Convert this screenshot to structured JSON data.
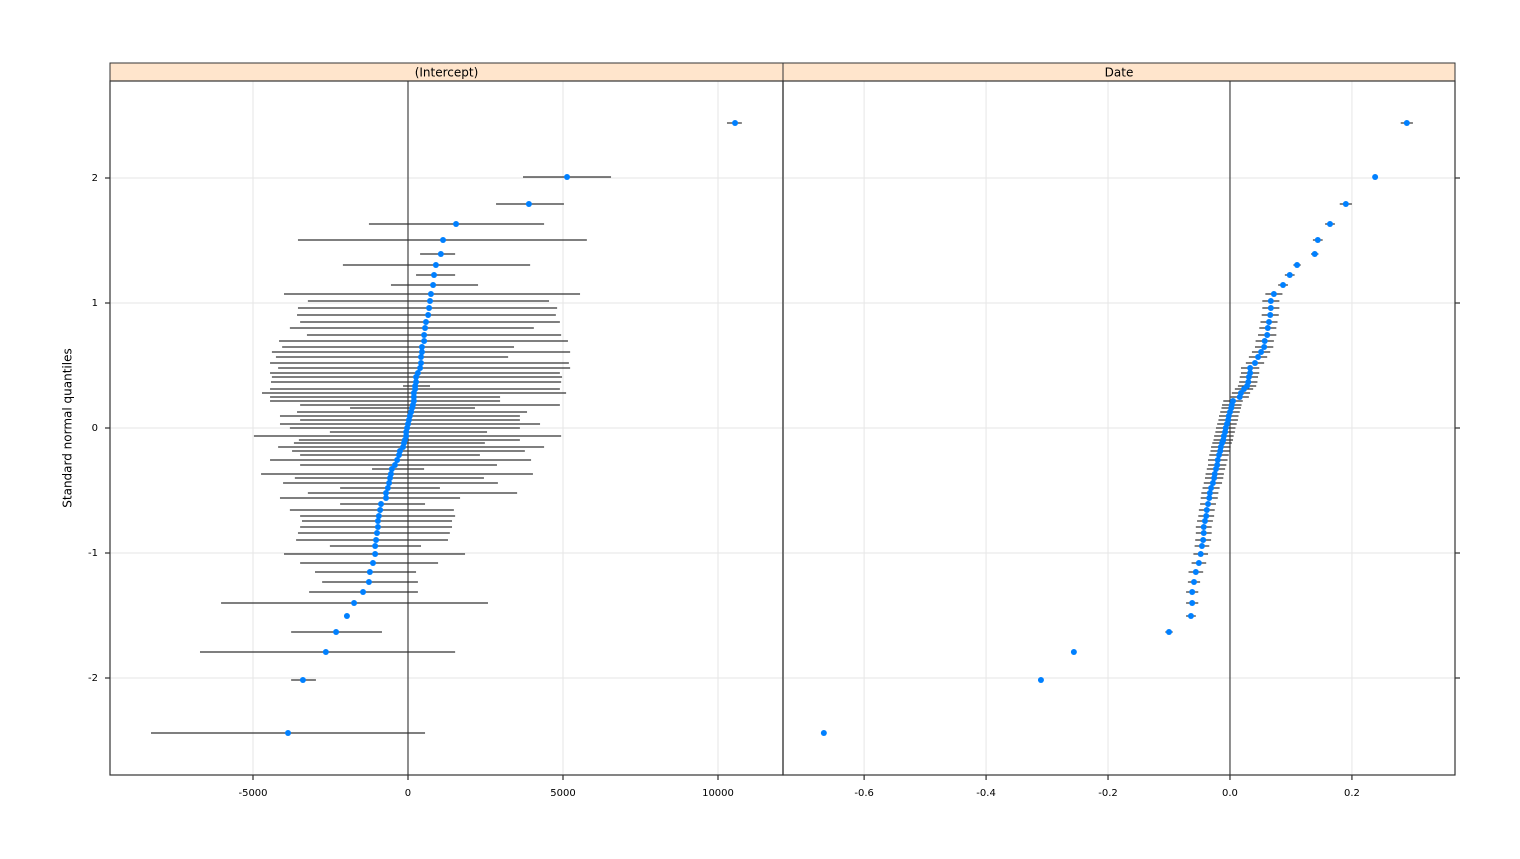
{
  "y_label": "Standard normal quantiles",
  "chart_data": [
    {
      "type": "dotplot",
      "strip": "(Intercept)",
      "color": "#0080ff",
      "grid": true,
      "xlim": [
        -9613,
        12097
      ],
      "xticks": [
        -5000,
        0,
        5000,
        10000
      ],
      "ylim": [
        -2.776,
        2.776
      ],
      "yticks": [
        -2,
        -1,
        0,
        1,
        2
      ],
      "y": [
        -2.44,
        -2.016,
        -1.792,
        -1.632,
        -1.504,
        -1.4,
        -1.312,
        -1.232,
        -1.152,
        -1.08,
        -1.008,
        -0.944,
        -0.896,
        -0.84,
        -0.792,
        -0.744,
        -0.704,
        -0.656,
        -0.608,
        -0.56,
        -0.52,
        -0.48,
        -0.44,
        -0.4,
        -0.368,
        -0.328,
        -0.296,
        -0.256,
        -0.216,
        -0.184,
        -0.152,
        -0.12,
        -0.096,
        -0.064,
        -0.032,
        0,
        0.032,
        0.064,
        0.096,
        0.128,
        0.16,
        0.184,
        0.216,
        0.248,
        0.28,
        0.312,
        0.336,
        0.368,
        0.408,
        0.44,
        0.48,
        0.52,
        0.568,
        0.608,
        0.648,
        0.696,
        0.744,
        0.8,
        0.848,
        0.904,
        0.96,
        1.016,
        1.072,
        1.144,
        1.224,
        1.304,
        1.392,
        1.504,
        1.632,
        1.792,
        2.008,
        2.44
      ],
      "values": [
        -3870,
        -3390,
        -2650,
        -2320,
        -1970,
        -1740,
        -1450,
        -1260,
        -1230,
        -1130,
        -1060,
        -1060,
        -1030,
        -1000,
        -970,
        -970,
        -940,
        -900,
        -870,
        -710,
        -710,
        -650,
        -610,
        -580,
        -550,
        -520,
        -420,
        -350,
        -290,
        -260,
        -160,
        -130,
        -100,
        -60,
        -60,
        -30,
        0,
        30,
        60,
        100,
        130,
        160,
        190,
        190,
        190,
        230,
        230,
        260,
        260,
        320,
        390,
        420,
        420,
        450,
        450,
        520,
        520,
        550,
        580,
        650,
        680,
        710,
        740,
        810,
        840,
        900,
        1060,
        1130,
        1550,
        3900,
        5130,
        10550
      ],
      "lower": [
        -8290,
        -3770,
        -6710,
        -3770,
        null,
        -6030,
        -3190,
        -2770,
        -3000,
        -3480,
        -4000,
        -2520,
        -3610,
        -3550,
        -3480,
        -3420,
        -3480,
        -3810,
        -2190,
        -4130,
        -3230,
        -2190,
        -4030,
        -3650,
        -4740,
        -1160,
        -3480,
        -4450,
        -3480,
        -3740,
        -4190,
        -3680,
        -3520,
        -4970,
        -2520,
        -3810,
        -4130,
        -3480,
        -4130,
        -3580,
        -1870,
        -3480,
        -4450,
        -4450,
        -4710,
        -4450,
        -160,
        -4420,
        -4390,
        -4450,
        -4190,
        -4450,
        -4260,
        -4390,
        -4060,
        -4160,
        -3260,
        -3810,
        -3480,
        -3580,
        -3550,
        -3230,
        -4000,
        -550,
        260,
        -2100,
        390,
        -3550,
        -1260,
        2840,
        3710,
        10290
      ],
      "upper": [
        550,
        -2970,
        1520,
        -840,
        null,
        2580,
        320,
        320,
        260,
        970,
        1840,
        420,
        1290,
        1350,
        1420,
        1420,
        1520,
        1480,
        550,
        1680,
        3520,
        1030,
        2900,
        2450,
        4030,
        520,
        2870,
        3970,
        2320,
        3770,
        4390,
        2480,
        3610,
        4940,
        2550,
        3610,
        4260,
        3610,
        3610,
        3840,
        2160,
        4900,
        2970,
        2970,
        5100,
        4900,
        710,
        4940,
        4970,
        4900,
        5230,
        5190,
        3230,
        5230,
        3420,
        5160,
        4940,
        4060,
        4900,
        4770,
        4810,
        4550,
        5550,
        2260,
        1520,
        3940,
        1520,
        5770,
        4390,
        5030,
        6550,
        10770
      ]
    },
    {
      "type": "dotplot",
      "strip": "Date",
      "color": "#0080ff",
      "grid": true,
      "xlim": [
        -0.733,
        0.369
      ],
      "xticks": [
        -0.6,
        -0.4,
        -0.2,
        {
          "value": 0,
          "label": "0.0"
        },
        0.2
      ],
      "ylim": [
        -2.776,
        2.776
      ],
      "yticks": [
        -2,
        -1,
        0,
        1,
        2
      ],
      "y": [
        -2.44,
        -2.016,
        -1.792,
        -1.632,
        -1.504,
        -1.4,
        -1.312,
        -1.232,
        -1.152,
        -1.08,
        -1.008,
        -0.944,
        -0.896,
        -0.84,
        -0.792,
        -0.744,
        -0.704,
        -0.656,
        -0.608,
        -0.56,
        -0.52,
        -0.48,
        -0.44,
        -0.4,
        -0.368,
        -0.328,
        -0.296,
        -0.256,
        -0.216,
        -0.184,
        -0.152,
        -0.12,
        -0.096,
        -0.064,
        -0.032,
        0,
        0.032,
        0.064,
        0.096,
        0.128,
        0.16,
        0.184,
        0.216,
        0.248,
        0.28,
        0.312,
        0.336,
        0.368,
        0.408,
        0.44,
        0.48,
        0.52,
        0.568,
        0.608,
        0.648,
        0.696,
        0.744,
        0.8,
        0.848,
        0.904,
        0.96,
        1.016,
        1.072,
        1.144,
        1.224,
        1.304,
        1.392,
        1.504,
        1.632,
        1.792,
        2.008,
        2.44
      ],
      "values": [
        -0.666,
        -0.31,
        -0.256,
        -0.1,
        -0.064,
        -0.062,
        -0.062,
        -0.059,
        -0.056,
        -0.051,
        -0.048,
        -0.046,
        -0.044,
        -0.043,
        -0.043,
        -0.041,
        -0.039,
        -0.038,
        -0.036,
        -0.034,
        -0.033,
        -0.031,
        -0.028,
        -0.026,
        -0.025,
        -0.023,
        -0.021,
        -0.02,
        -0.018,
        -0.016,
        -0.015,
        -0.013,
        -0.011,
        -0.01,
        -0.008,
        -0.007,
        -0.005,
        -0.003,
        -0.002,
        0,
        0.002,
        0.003,
        0.005,
        0.016,
        0.018,
        0.023,
        0.028,
        0.03,
        0.031,
        0.033,
        0.033,
        0.041,
        0.046,
        0.051,
        0.056,
        0.057,
        0.061,
        0.062,
        0.064,
        0.066,
        0.067,
        0.067,
        0.072,
        0.087,
        0.098,
        0.11,
        0.139,
        0.144,
        0.164,
        0.19,
        0.238,
        0.29
      ],
      "errors": [
        null,
        null,
        null,
        0.006,
        0.008,
        0.01,
        0.01,
        0.01,
        0.012,
        0.012,
        0.012,
        0.012,
        0.013,
        0.013,
        0.013,
        0.013,
        0.013,
        0.013,
        0.013,
        0.014,
        0.014,
        0.014,
        0.015,
        0.015,
        0.015,
        0.015,
        0.015,
        0.016,
        0.016,
        0.016,
        0.016,
        0.016,
        0.016,
        0.016,
        0.016,
        0.016,
        0.016,
        0.016,
        0.016,
        0.016,
        0.016,
        0.016,
        0.016,
        0.015,
        0.015,
        0.015,
        0.015,
        0.015,
        0.015,
        0.015,
        0.015,
        0.015,
        0.015,
        0.015,
        0.015,
        0.015,
        0.015,
        0.014,
        0.014,
        0.014,
        0.014,
        0.014,
        0.014,
        0.008,
        0.008,
        0.006,
        0.006,
        0.008,
        0.008,
        0.01,
        0.004,
        0.01
      ]
    }
  ]
}
